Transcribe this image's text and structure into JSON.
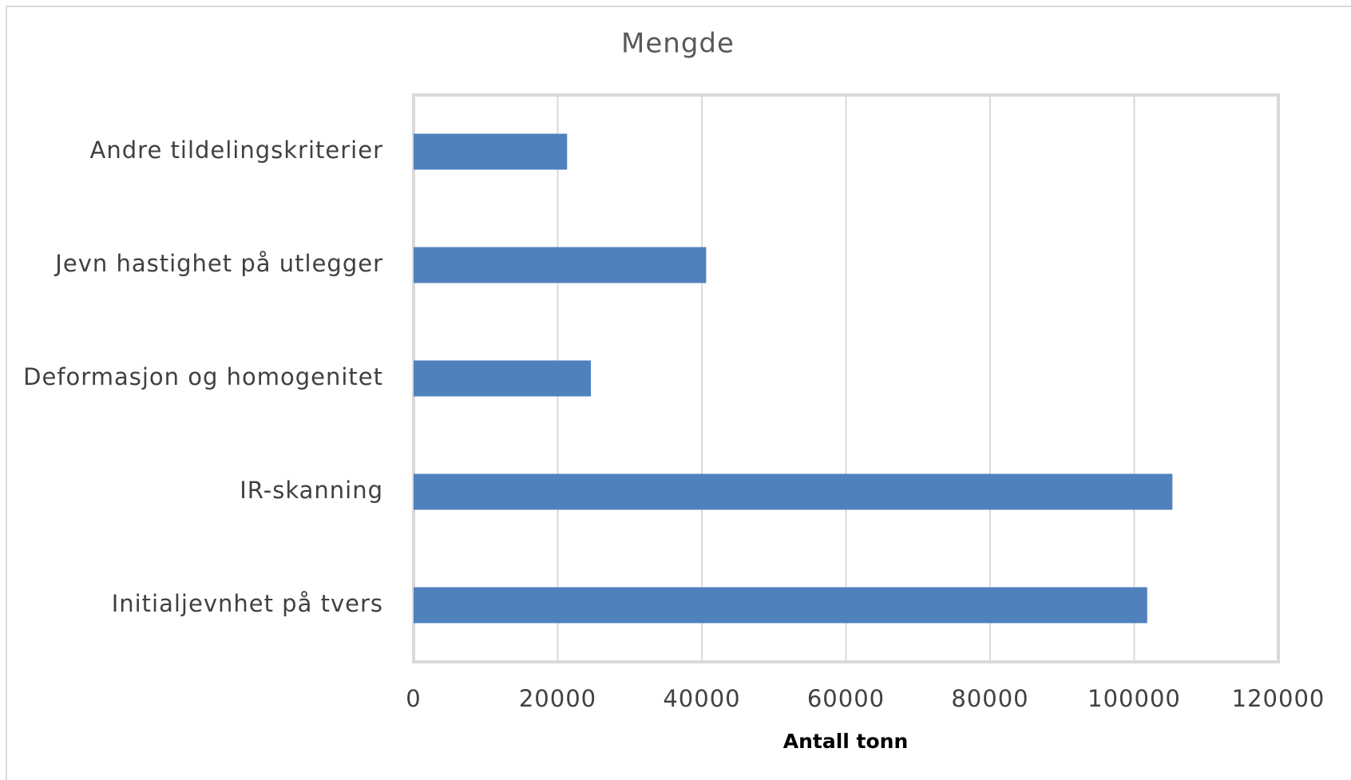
{
  "chart_data": {
    "type": "bar",
    "orientation": "horizontal",
    "title": "Mengde",
    "x_label": "Antall tonn",
    "categories": [
      "Andre tildelingskriterier",
      "Jevn hastighet på utlegger",
      "Deformasjon og homogenitet",
      "IR-skanning",
      "Initialjevnhet på tvers"
    ],
    "values": [
      21300,
      40600,
      24600,
      105300,
      101800
    ],
    "color": "#4f81bd",
    "xlim": [
      0,
      120000
    ],
    "xticks": [
      0,
      20000,
      40000,
      60000,
      80000,
      100000,
      120000
    ],
    "grid": true
  }
}
